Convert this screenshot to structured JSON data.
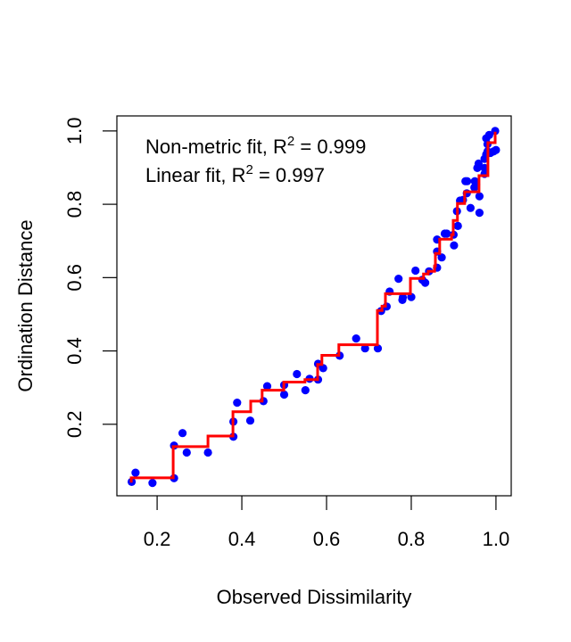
{
  "chart_data": {
    "type": "scatter",
    "title": "",
    "xlabel": "Observed Dissimilarity",
    "ylabel": "Ordination Distance",
    "xlim": [
      0.105,
      1.036
    ],
    "ylim": [
      0.005,
      1.041
    ],
    "x_ticks": [
      0.2,
      0.4,
      0.6,
      0.8,
      1.0
    ],
    "x_tick_labels": [
      "0.2",
      "0.4",
      "0.6",
      "0.8",
      "1.0"
    ],
    "y_ticks": [
      0.2,
      0.4,
      0.6,
      0.8,
      1.0
    ],
    "y_tick_labels": [
      "0.2",
      "0.4",
      "0.6",
      "0.8",
      "1.0"
    ],
    "grid": false,
    "annotations": [
      {
        "prefix": "Non-metric fit, R",
        "sup": "2",
        "suffix": " = 0.999"
      },
      {
        "prefix": "Linear fit, R",
        "sup": "2",
        "suffix": " = 0.997"
      }
    ],
    "series": [
      {
        "name": "points",
        "kind": "scatter",
        "color": "#0000ff",
        "points": [
          [
            0.14,
            0.043
          ],
          [
            0.149,
            0.068
          ],
          [
            0.189,
            0.04
          ],
          [
            0.24,
            0.053
          ],
          [
            0.24,
            0.142
          ],
          [
            0.26,
            0.176
          ],
          [
            0.27,
            0.123
          ],
          [
            0.32,
            0.123
          ],
          [
            0.38,
            0.166
          ],
          [
            0.38,
            0.207
          ],
          [
            0.389,
            0.259
          ],
          [
            0.42,
            0.21
          ],
          [
            0.451,
            0.263
          ],
          [
            0.46,
            0.304
          ],
          [
            0.5,
            0.281
          ],
          [
            0.5,
            0.307
          ],
          [
            0.53,
            0.337
          ],
          [
            0.55,
            0.293
          ],
          [
            0.56,
            0.324
          ],
          [
            0.58,
            0.322
          ],
          [
            0.58,
            0.365
          ],
          [
            0.592,
            0.353
          ],
          [
            0.631,
            0.387
          ],
          [
            0.67,
            0.434
          ],
          [
            0.691,
            0.407
          ],
          [
            0.721,
            0.407
          ],
          [
            0.729,
            0.509
          ],
          [
            0.742,
            0.521
          ],
          [
            0.749,
            0.562
          ],
          [
            0.77,
            0.597
          ],
          [
            0.779,
            0.539
          ],
          [
            0.78,
            0.546
          ],
          [
            0.8,
            0.547
          ],
          [
            0.81,
            0.619
          ],
          [
            0.826,
            0.594
          ],
          [
            0.833,
            0.586
          ],
          [
            0.842,
            0.617
          ],
          [
            0.861,
            0.627
          ],
          [
            0.861,
            0.671
          ],
          [
            0.872,
            0.655
          ],
          [
            0.861,
            0.704
          ],
          [
            0.879,
            0.72
          ],
          [
            0.884,
            0.72
          ],
          [
            0.901,
            0.688
          ],
          [
            0.9,
            0.717
          ],
          [
            0.91,
            0.741
          ],
          [
            0.908,
            0.781
          ],
          [
            0.915,
            0.81
          ],
          [
            0.922,
            0.812
          ],
          [
            0.931,
            0.83
          ],
          [
            0.928,
            0.863
          ],
          [
            0.94,
            0.79
          ],
          [
            0.961,
            0.822
          ],
          [
            0.961,
            0.777
          ],
          [
            0.95,
            0.863
          ],
          [
            0.949,
            0.846
          ],
          [
            0.959,
            0.911
          ],
          [
            0.956,
            0.899
          ],
          [
            0.973,
            0.899
          ],
          [
            0.973,
            0.883
          ],
          [
            0.973,
            0.924
          ],
          [
            0.977,
            0.936
          ],
          [
            0.98,
            0.944
          ],
          [
            0.994,
            0.944
          ],
          [
            0.987,
            0.94
          ],
          [
            1.0,
            0.948
          ],
          [
            0.98,
            0.964
          ],
          [
            0.977,
            0.98
          ],
          [
            0.984,
            0.989
          ],
          [
            0.998,
            1.0
          ],
          [
            0.932,
            0.863
          ],
          [
            0.953,
            0.854
          ]
        ]
      },
      {
        "name": "monotone step fit",
        "kind": "step-line",
        "color": "#ff0000",
        "points": [
          [
            0.139,
            0.041
          ],
          [
            0.139,
            0.054
          ],
          [
            0.238,
            0.054
          ],
          [
            0.238,
            0.139
          ],
          [
            0.32,
            0.139
          ],
          [
            0.32,
            0.168
          ],
          [
            0.379,
            0.168
          ],
          [
            0.379,
            0.234
          ],
          [
            0.421,
            0.234
          ],
          [
            0.421,
            0.263
          ],
          [
            0.448,
            0.263
          ],
          [
            0.448,
            0.293
          ],
          [
            0.499,
            0.293
          ],
          [
            0.499,
            0.315
          ],
          [
            0.549,
            0.315
          ],
          [
            0.549,
            0.322
          ],
          [
            0.579,
            0.322
          ],
          [
            0.579,
            0.363
          ],
          [
            0.589,
            0.363
          ],
          [
            0.589,
            0.388
          ],
          [
            0.629,
            0.388
          ],
          [
            0.629,
            0.417
          ],
          [
            0.72,
            0.417
          ],
          [
            0.72,
            0.51
          ],
          [
            0.731,
            0.51
          ],
          [
            0.731,
            0.522
          ],
          [
            0.739,
            0.522
          ],
          [
            0.739,
            0.556
          ],
          [
            0.798,
            0.556
          ],
          [
            0.798,
            0.598
          ],
          [
            0.829,
            0.598
          ],
          [
            0.829,
            0.61
          ],
          [
            0.84,
            0.61
          ],
          [
            0.84,
            0.617
          ],
          [
            0.855,
            0.617
          ],
          [
            0.855,
            0.632
          ],
          [
            0.857,
            0.632
          ],
          [
            0.857,
            0.666
          ],
          [
            0.867,
            0.666
          ],
          [
            0.867,
            0.705
          ],
          [
            0.895,
            0.705
          ],
          [
            0.895,
            0.717
          ],
          [
            0.899,
            0.717
          ],
          [
            0.899,
            0.756
          ],
          [
            0.909,
            0.756
          ],
          [
            0.909,
            0.802
          ],
          [
            0.926,
            0.802
          ],
          [
            0.926,
            0.834
          ],
          [
            0.96,
            0.834
          ],
          [
            0.96,
            0.878
          ],
          [
            0.981,
            0.878
          ],
          [
            0.981,
            0.968
          ],
          [
            0.998,
            0.968
          ],
          [
            0.998,
            0.998
          ]
        ]
      }
    ]
  }
}
